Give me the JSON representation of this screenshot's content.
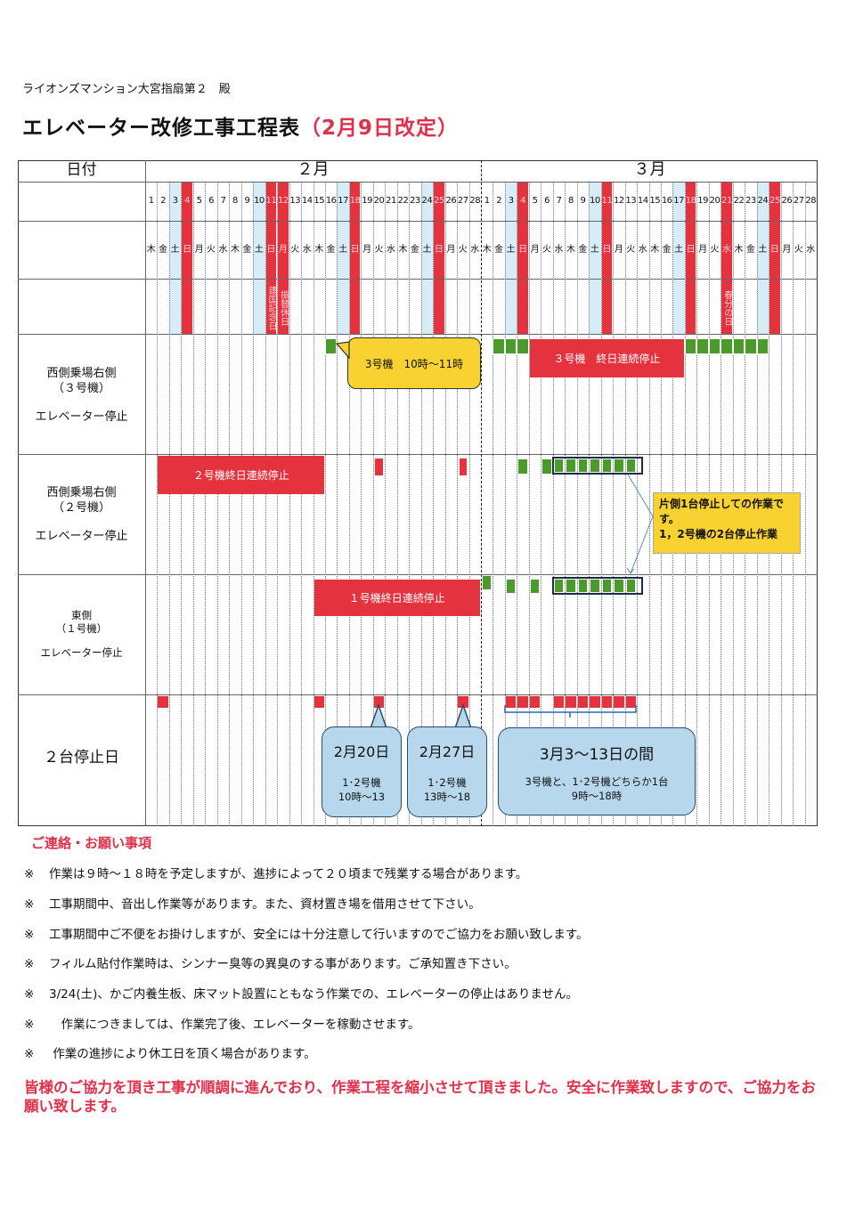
{
  "header": {
    "addressee": "ライオンズマンション大宮指扇第２　殿",
    "title": "エレベーター改修工事工程表",
    "revision": "（2月9日改定）"
  },
  "table": {
    "date_label": "日付",
    "months": [
      {
        "label": "２月",
        "days": 28,
        "weekdays": [
          "木",
          "金",
          "土",
          "日",
          "月",
          "火",
          "水",
          "木",
          "金",
          "土",
          "日",
          "月",
          "火",
          "水",
          "木",
          "金",
          "土",
          "日",
          "月",
          "火",
          "水",
          "木",
          "金",
          "土",
          "日",
          "月",
          "火",
          "水"
        ],
        "sundays_holidays": [
          4,
          11,
          12,
          18,
          25
        ],
        "saturdays": [
          3,
          10,
          17,
          24
        ],
        "holidays": [
          {
            "day": 11,
            "name": "建国記念日"
          },
          {
            "day": 12,
            "name": "振替休日"
          }
        ]
      },
      {
        "label": "３月",
        "days": 28,
        "weekdays": [
          "木",
          "金",
          "土",
          "日",
          "月",
          "火",
          "水",
          "木",
          "金",
          "土",
          "日",
          "月",
          "火",
          "水",
          "木",
          "金",
          "土",
          "日",
          "月",
          "火",
          "水",
          "木",
          "金",
          "土",
          "日",
          "月",
          "火",
          "水"
        ],
        "sundays_holidays": [
          4,
          11,
          18,
          21,
          25
        ],
        "saturdays": [
          3,
          10,
          17,
          24
        ],
        "holidays": [
          {
            "day": 21,
            "name": "春分の日"
          }
        ]
      }
    ],
    "rows": [
      {
        "label_lines": [
          "西側乗場右側",
          "（３号機）",
          "",
          "エレベーター停止"
        ]
      },
      {
        "label_lines": [
          "西側乗場右側",
          "（２号機）",
          "",
          "エレベーター停止"
        ]
      },
      {
        "label_lines": [
          "東側",
          "（１号機）",
          "",
          "エレベーター停止"
        ]
      },
      {
        "label_lines": [
          "２台停止日"
        ]
      }
    ]
  },
  "schedule": {
    "colors": {
      "red": "#e5323f",
      "green": "#4a9a2c",
      "yellow": "#f7d230",
      "blue": "#b7d8ec"
    },
    "row1": {
      "green_days": [
        "2/16",
        "3/2",
        "3/3",
        "3/4",
        "3/18",
        "3/19",
        "3/20",
        "3/21",
        "3/22",
        "3/23",
        "3/24"
      ],
      "red_span": {
        "from": "3/5",
        "to": "3/17",
        "label": "３号機　終日連続停止"
      },
      "callout": "3号機　10時～11時"
    },
    "row2": {
      "red_span": {
        "from": "2/2",
        "to": "2/15",
        "label": "２号機終日連続停止"
      },
      "red_days": [
        "2/20",
        "2/27"
      ],
      "green_days": [
        "3/4",
        "3/6"
      ],
      "boxed_green": {
        "from": "3/7",
        "to": "3/13"
      },
      "note_lines": [
        "片側1台停止しての作業で",
        "す。",
        "1，2号機の2台停止作業"
      ]
    },
    "row3": {
      "red_span": {
        "from": "2/15",
        "to": "2/28",
        "label": "１号機終日連続停止"
      },
      "green_days": [
        "3/1",
        "3/3",
        "3/5"
      ],
      "boxed_green": {
        "from": "3/7",
        "to": "3/13"
      }
    },
    "row4": {
      "red_days": [
        "2/2",
        "2/15",
        "2/20",
        "2/27",
        "3/3",
        "3/4",
        "3/5",
        "3/7",
        "3/8",
        "3/9",
        "3/10",
        "3/11",
        "3/12",
        "3/13"
      ],
      "callouts": [
        {
          "title": "2月20日",
          "lines": [
            "1･2号機",
            "10時～13"
          ]
        },
        {
          "title": "2月27日",
          "lines": [
            "1･2号機",
            "13時～18"
          ]
        },
        {
          "title": "3月3～13日の間",
          "lines": [
            "3号機と、1･2号機どちらか1台",
            "9時～18時"
          ]
        }
      ]
    }
  },
  "notes": {
    "heading": "ご連絡・お願い事項",
    "mark": "※",
    "items": [
      "作業は９時～１８時を予定しますが、進捗によって２０頃まで残業する場合があります。",
      "工事期間中、音出し作業等があります。また、資材置き場を借用させて下さい。",
      "工事期間中ご不便をお掛けしますが、安全には十分注意して行いますのでご協力をお願い致します。",
      "フィルム貼付作業時は、シンナー臭等の異臭のする事があります。ご承知置き下さい。",
      "3/24(土)、かご内養生板、床マット設置にともなう作業での、エレベーターの停止はありません。",
      "　作業につきましては、作業完了後、エレベーターを稼動させます。",
      " 作業の進捗により休工日を頂く場合があります。"
    ],
    "closing": "皆様のご協力を頂き工事が順調に進んでおり、作業工程を縮小させて頂きました。安全に作業致しますので、ご協力をお願い致します。"
  }
}
